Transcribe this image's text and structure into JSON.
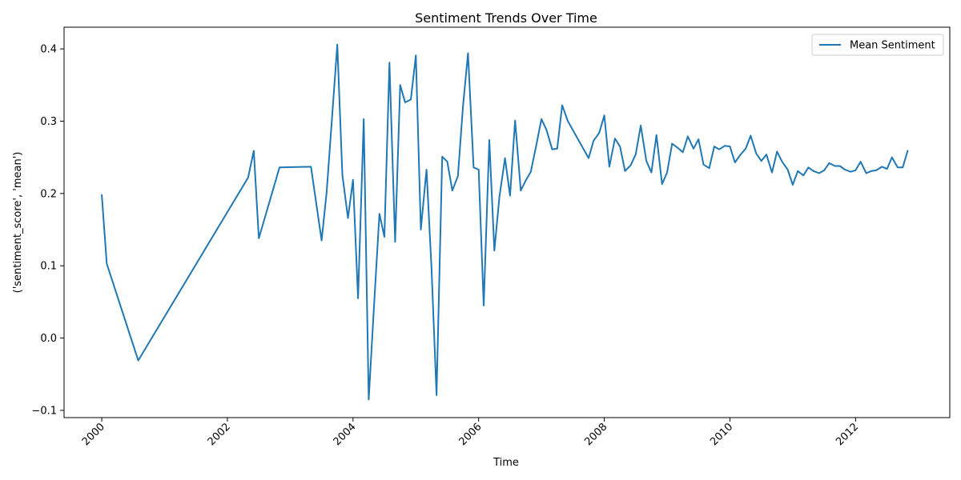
{
  "chart_data": {
    "type": "line",
    "title": "Sentiment Trends Over Time",
    "xlabel": "Time",
    "ylabel": "('sentiment_score', 'mean')",
    "xlim": [
      1999.4,
      2013.5
    ],
    "ylim": [
      -0.11,
      0.43
    ],
    "x_ticks": [
      2000,
      2002,
      2004,
      2006,
      2008,
      2010,
      2012
    ],
    "x_tick_labels": [
      "2000",
      "2002",
      "2004",
      "2006",
      "2008",
      "2010",
      "2012"
    ],
    "y_ticks": [
      -0.1,
      0.0,
      0.1,
      0.2,
      0.3,
      0.4
    ],
    "y_tick_labels": [
      "−0.1",
      "0.0",
      "0.1",
      "0.2",
      "0.3",
      "0.4"
    ],
    "legend": "top-right",
    "grid": false,
    "series": [
      {
        "name": "Mean Sentiment",
        "color": "#1f77b4",
        "points": [
          [
            2000.0,
            0.198
          ],
          [
            2000.08,
            0.103
          ],
          [
            2000.58,
            -0.031
          ],
          [
            2002.33,
            0.222
          ],
          [
            2002.42,
            0.259
          ],
          [
            2002.5,
            0.138
          ],
          [
            2002.83,
            0.236
          ],
          [
            2003.33,
            0.237
          ],
          [
            2003.5,
            0.135
          ],
          [
            2003.58,
            0.202
          ],
          [
            2003.75,
            0.406
          ],
          [
            2003.83,
            0.226
          ],
          [
            2003.92,
            0.166
          ],
          [
            2004.0,
            0.219
          ],
          [
            2004.08,
            0.055
          ],
          [
            2004.17,
            0.303
          ],
          [
            2004.25,
            -0.085
          ],
          [
            2004.33,
            0.038
          ],
          [
            2004.42,
            0.172
          ],
          [
            2004.5,
            0.14
          ],
          [
            2004.58,
            0.381
          ],
          [
            2004.67,
            0.133
          ],
          [
            2004.75,
            0.35
          ],
          [
            2004.83,
            0.326
          ],
          [
            2004.92,
            0.33
          ],
          [
            2005.0,
            0.391
          ],
          [
            2005.08,
            0.15
          ],
          [
            2005.17,
            0.233
          ],
          [
            2005.25,
            0.095
          ],
          [
            2005.33,
            -0.079
          ],
          [
            2005.42,
            0.251
          ],
          [
            2005.5,
            0.244
          ],
          [
            2005.58,
            0.204
          ],
          [
            2005.67,
            0.224
          ],
          [
            2005.75,
            0.32
          ],
          [
            2005.83,
            0.394
          ],
          [
            2005.92,
            0.236
          ],
          [
            2006.0,
            0.233
          ],
          [
            2006.08,
            0.045
          ],
          [
            2006.17,
            0.274
          ],
          [
            2006.25,
            0.121
          ],
          [
            2006.33,
            0.195
          ],
          [
            2006.42,
            0.249
          ],
          [
            2006.5,
            0.197
          ],
          [
            2006.58,
            0.301
          ],
          [
            2006.67,
            0.204
          ],
          [
            2006.75,
            0.218
          ],
          [
            2006.83,
            0.23
          ],
          [
            2006.92,
            0.268
          ],
          [
            2007.0,
            0.303
          ],
          [
            2007.08,
            0.288
          ],
          [
            2007.17,
            0.261
          ],
          [
            2007.25,
            0.262
          ],
          [
            2007.33,
            0.322
          ],
          [
            2007.42,
            0.3
          ],
          [
            2007.75,
            0.249
          ],
          [
            2007.83,
            0.273
          ],
          [
            2007.92,
            0.284
          ],
          [
            2008.0,
            0.308
          ],
          [
            2008.08,
            0.237
          ],
          [
            2008.17,
            0.276
          ],
          [
            2008.25,
            0.265
          ],
          [
            2008.33,
            0.231
          ],
          [
            2008.42,
            0.239
          ],
          [
            2008.5,
            0.254
          ],
          [
            2008.58,
            0.294
          ],
          [
            2008.67,
            0.245
          ],
          [
            2008.75,
            0.229
          ],
          [
            2008.83,
            0.281
          ],
          [
            2008.92,
            0.213
          ],
          [
            2009.0,
            0.229
          ],
          [
            2009.08,
            0.269
          ],
          [
            2009.17,
            0.263
          ],
          [
            2009.25,
            0.257
          ],
          [
            2009.33,
            0.279
          ],
          [
            2009.42,
            0.262
          ],
          [
            2009.5,
            0.275
          ],
          [
            2009.58,
            0.24
          ],
          [
            2009.67,
            0.235
          ],
          [
            2009.75,
            0.265
          ],
          [
            2009.83,
            0.261
          ],
          [
            2009.92,
            0.266
          ],
          [
            2010.0,
            0.265
          ],
          [
            2010.08,
            0.243
          ],
          [
            2010.17,
            0.254
          ],
          [
            2010.25,
            0.262
          ],
          [
            2010.33,
            0.28
          ],
          [
            2010.42,
            0.255
          ],
          [
            2010.5,
            0.245
          ],
          [
            2010.58,
            0.254
          ],
          [
            2010.67,
            0.229
          ],
          [
            2010.75,
            0.258
          ],
          [
            2010.83,
            0.244
          ],
          [
            2010.92,
            0.233
          ],
          [
            2011.0,
            0.212
          ],
          [
            2011.08,
            0.231
          ],
          [
            2011.17,
            0.225
          ],
          [
            2011.25,
            0.236
          ],
          [
            2011.33,
            0.231
          ],
          [
            2011.42,
            0.228
          ],
          [
            2011.5,
            0.232
          ],
          [
            2011.58,
            0.242
          ],
          [
            2011.67,
            0.238
          ],
          [
            2011.75,
            0.238
          ],
          [
            2011.83,
            0.233
          ],
          [
            2011.92,
            0.23
          ],
          [
            2012.0,
            0.232
          ],
          [
            2012.08,
            0.244
          ],
          [
            2012.17,
            0.228
          ],
          [
            2012.25,
            0.231
          ],
          [
            2012.33,
            0.232
          ],
          [
            2012.42,
            0.237
          ],
          [
            2012.5,
            0.234
          ],
          [
            2012.58,
            0.25
          ],
          [
            2012.67,
            0.236
          ],
          [
            2012.75,
            0.236
          ],
          [
            2012.83,
            0.259
          ]
        ]
      }
    ]
  }
}
